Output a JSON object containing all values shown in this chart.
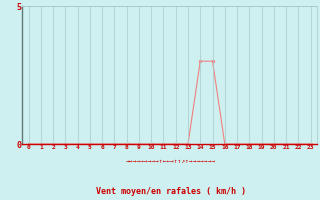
{
  "x_values": [
    0,
    1,
    2,
    3,
    4,
    5,
    6,
    7,
    8,
    9,
    10,
    11,
    12,
    13,
    14,
    15,
    16,
    17,
    18,
    19,
    20,
    21,
    22,
    23
  ],
  "y_values": [
    0,
    0,
    0,
    0,
    0,
    0,
    0,
    0,
    0,
    0,
    0,
    0,
    0,
    0,
    3,
    3,
    0,
    0,
    0,
    0,
    0,
    0,
    0,
    0
  ],
  "xlabel": "Vent moyen/en rafales ( km/h )",
  "ylim": [
    0,
    5
  ],
  "xlim": [
    -0.5,
    23.5
  ],
  "yticks": [
    0,
    5
  ],
  "xticks": [
    0,
    1,
    2,
    3,
    4,
    5,
    6,
    7,
    8,
    9,
    10,
    11,
    12,
    13,
    14,
    15,
    16,
    17,
    18,
    19,
    20,
    21,
    22,
    23
  ],
  "line_color": "#f08080",
  "marker_color": "#f08080",
  "bg_color": "#cff0f0",
  "grid_color": "#a8c8c8",
  "tick_label_color": "#cc0000",
  "xlabel_color": "#cc0000",
  "arrow_row": "→→→→→→→→→↑←←→↑↑↗↑→→→→→→→"
}
